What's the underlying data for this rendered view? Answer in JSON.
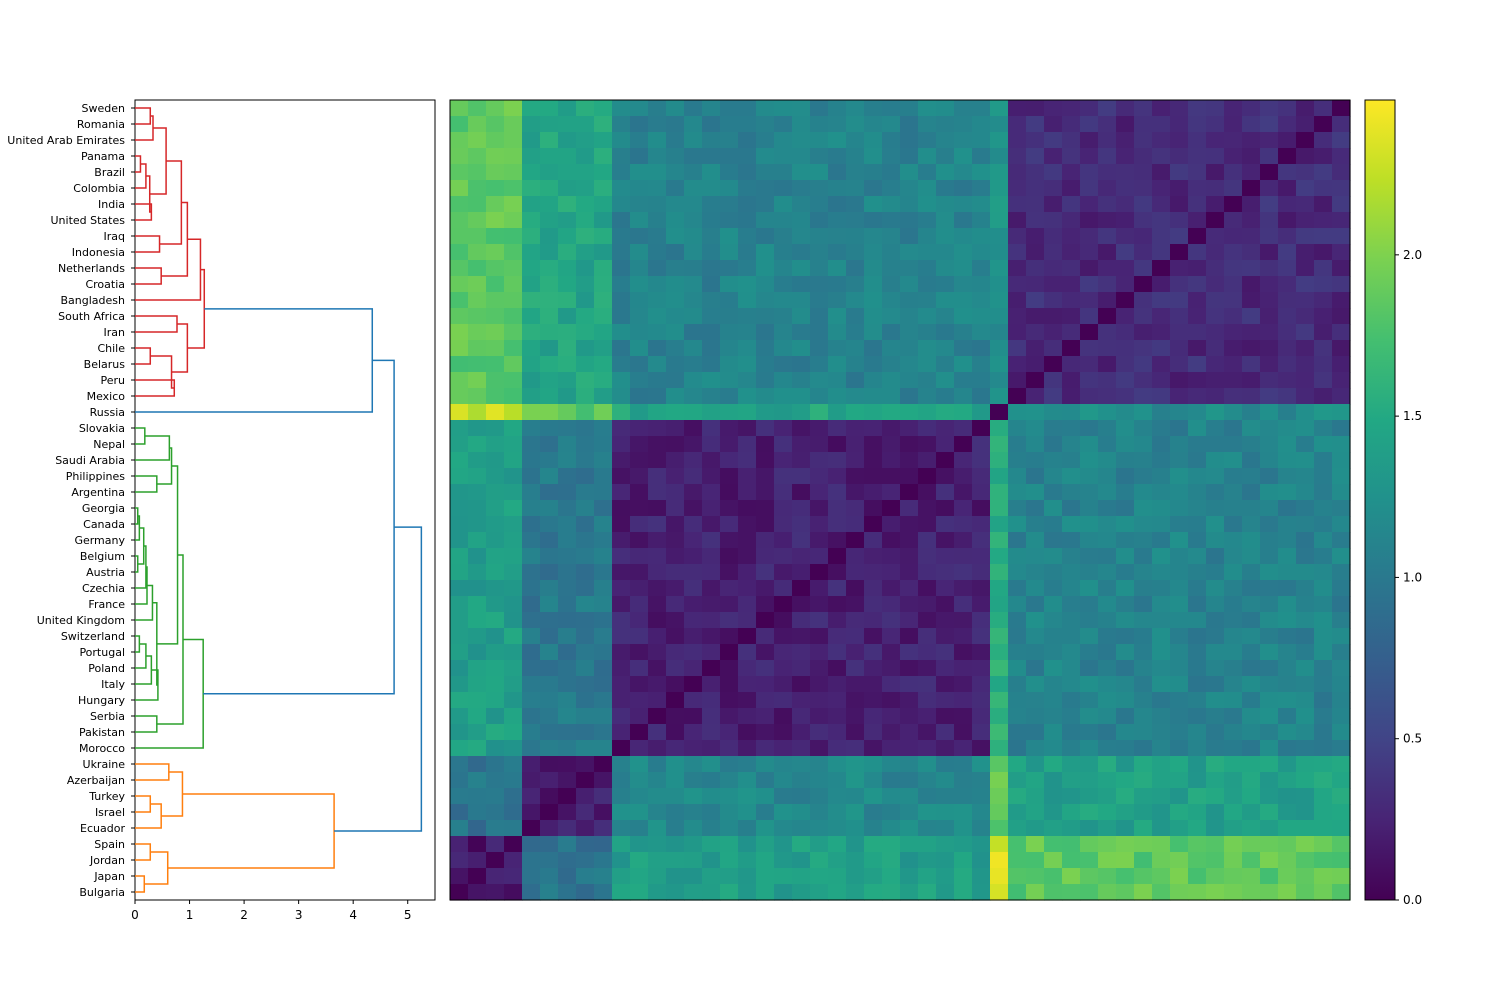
{
  "chart_data": [
    {
      "type": "dendrogram",
      "orientation": "left",
      "leaves": [
        "Sweden",
        "Romania",
        "United Arab Emirates",
        "Panama",
        "Brazil",
        "Colombia",
        "India",
        "United States",
        "Iraq",
        "Indonesia",
        "Netherlands",
        "Croatia",
        "Bangladesh",
        "South Africa",
        "Iran",
        "Chile",
        "Belarus",
        "Peru",
        "Mexico",
        "Russia",
        "Slovakia",
        "Nepal",
        "Saudi Arabia",
        "Philippines",
        "Argentina",
        "Georgia",
        "Canada",
        "Germany",
        "Belgium",
        "Austria",
        "Czechia",
        "France",
        "United Kingdom",
        "Switzerland",
        "Portugal",
        "Poland",
        "Italy",
        "Hungary",
        "Serbia",
        "Pakistan",
        "Morocco",
        "Ukraine",
        "Azerbaijan",
        "Turkey",
        "Israel",
        "Ecuador",
        "Spain",
        "Jordan",
        "Japan",
        "Bulgaria"
      ],
      "x_ticks": [
        "0",
        "1",
        "2",
        "3",
        "4",
        "5"
      ],
      "xlim": [
        0,
        5.5
      ],
      "cluster_colors": {
        "red": "#d62728",
        "green": "#2ca02c",
        "orange": "#ff7f0e",
        "blue": "#1f77b4"
      },
      "links": [
        {
          "a": "Sweden",
          "b": "Romania",
          "h": 0.28,
          "color": "red"
        },
        {
          "a": "Panama",
          "b": "Brazil",
          "h": 0.1,
          "color": "red"
        },
        {
          "a": "L:Panama|Brazil",
          "b": "Colombia",
          "h": 0.2,
          "color": "red"
        },
        {
          "a": "India",
          "b": "United States",
          "h": 0.3,
          "color": "red"
        },
        {
          "a": "L:Panama|Colombia",
          "b": "L:India|United States",
          "h": 0.27,
          "color": "red"
        },
        {
          "a": "L:Sweden|Romania",
          "b": "United Arab Emirates",
          "h": 0.33,
          "color": "red"
        },
        {
          "a": "L:Sweden|United Arab Emirates",
          "b": "L:Panama|United States",
          "h": 0.57,
          "color": "red"
        },
        {
          "a": "Iraq",
          "b": "Indonesia",
          "h": 0.45,
          "color": "red"
        },
        {
          "a": "L:Sweden|United States",
          "b": "L:Iraq|Indonesia",
          "h": 0.85,
          "color": "red"
        },
        {
          "a": "Netherlands",
          "b": "Croatia",
          "h": 0.48,
          "color": "red"
        },
        {
          "a": "L:Sweden|Indonesia",
          "b": "L:Netherlands|Croatia",
          "h": 0.96,
          "color": "red"
        },
        {
          "a": "L:Sweden|Croatia",
          "b": "Bangladesh",
          "h": 1.2,
          "color": "red"
        },
        {
          "a": "South Africa",
          "b": "Iran",
          "h": 0.77,
          "color": "red"
        },
        {
          "a": "Chile",
          "b": "Belarus",
          "h": 0.28,
          "color": "red"
        },
        {
          "a": "Peru",
          "b": "Mexico",
          "h": 0.72,
          "color": "red"
        },
        {
          "a": "L:Chile|Belarus",
          "b": "L:Peru|Mexico",
          "h": 0.67,
          "color": "red"
        },
        {
          "a": "L:South Africa|Iran",
          "b": "L:Chile|Mexico",
          "h": 0.96,
          "color": "red"
        },
        {
          "a": "L:Sweden|Bangladesh",
          "b": "L:South Africa|Mexico",
          "h": 1.27,
          "color": "red"
        },
        {
          "a": "L:Sweden|Mexico",
          "b": "Russia",
          "h": 4.35,
          "color": "blue"
        },
        {
          "a": "Slovakia",
          "b": "Nepal",
          "h": 0.18,
          "color": "green"
        },
        {
          "a": "L:Slovakia|Nepal",
          "b": "Saudi Arabia",
          "h": 0.63,
          "color": "green"
        },
        {
          "a": "Philippines",
          "b": "Argentina",
          "h": 0.4,
          "color": "green"
        },
        {
          "a": "L:Slovakia|Saudi Arabia",
          "b": "L:Philippines|Argentina",
          "h": 0.67,
          "color": "green"
        },
        {
          "a": "Georgia",
          "b": "Canada",
          "h": 0.05,
          "color": "green"
        },
        {
          "a": "L:Georgia|Canada",
          "b": "Germany",
          "h": 0.08,
          "color": "green"
        },
        {
          "a": "Belgium",
          "b": "Austria",
          "h": 0.05,
          "color": "green"
        },
        {
          "a": "L:Georgia|Germany",
          "b": "L:Belgium|Austria",
          "h": 0.16,
          "color": "green"
        },
        {
          "a": "L:Georgia|Austria",
          "b": "Czechia",
          "h": 0.2,
          "color": "green"
        },
        {
          "a": "L:Georgia|Czechia",
          "b": "France",
          "h": 0.22,
          "color": "green"
        },
        {
          "a": "L:Georgia|France",
          "b": "United Kingdom",
          "h": 0.32,
          "color": "green"
        },
        {
          "a": "Switzerland",
          "b": "Portugal",
          "h": 0.08,
          "color": "green"
        },
        {
          "a": "L:Switzerland|Portugal",
          "b": "Poland",
          "h": 0.2,
          "color": "green"
        },
        {
          "a": "L:Switzerland|Poland",
          "b": "Italy",
          "h": 0.3,
          "color": "green"
        },
        {
          "a": "L:Switzerland|Italy",
          "b": "Hungary",
          "h": 0.42,
          "color": "green"
        },
        {
          "a": "L:Georgia|United Kingdom",
          "b": "L:Switzerland|Hungary",
          "h": 0.4,
          "color": "green"
        },
        {
          "a": "L:Slovakia|Argentina",
          "b": "L:Georgia|Hungary",
          "h": 0.78,
          "color": "green"
        },
        {
          "a": "Serbia",
          "b": "Pakistan",
          "h": 0.4,
          "color": "green"
        },
        {
          "a": "L:Slovakia|Hungary",
          "b": "L:Serbia|Pakistan",
          "h": 0.88,
          "color": "green"
        },
        {
          "a": "L:Slovakia|Pakistan",
          "b": "Morocco",
          "h": 1.25,
          "color": "green"
        },
        {
          "a": "L:Sweden|Russia",
          "b": "L:Slovakia|Morocco",
          "h": 4.75,
          "color": "blue"
        },
        {
          "a": "Ukraine",
          "b": "Azerbaijan",
          "h": 0.62,
          "color": "orange"
        },
        {
          "a": "Turkey",
          "b": "Israel",
          "h": 0.28,
          "color": "orange"
        },
        {
          "a": "L:Turkey|Israel",
          "b": "Ecuador",
          "h": 0.48,
          "color": "orange"
        },
        {
          "a": "L:Ukraine|Azerbaijan",
          "b": "L:Turkey|Ecuador",
          "h": 0.87,
          "color": "orange"
        },
        {
          "a": "Spain",
          "b": "Jordan",
          "h": 0.28,
          "color": "orange"
        },
        {
          "a": "Japan",
          "b": "Bulgaria",
          "h": 0.17,
          "color": "orange"
        },
        {
          "a": "L:Spain|Jordan",
          "b": "L:Japan|Bulgaria",
          "h": 0.6,
          "color": "orange"
        },
        {
          "a": "L:Ukraine|Ecuador",
          "b": "L:Spain|Bulgaria",
          "h": 3.65,
          "color": "orange"
        },
        {
          "a": "L:Sweden|Morocco",
          "b": "L:Ukraine|Bulgaria",
          "h": 5.25,
          "color": "blue"
        }
      ]
    },
    {
      "type": "heatmap",
      "rows": 50,
      "cols": 50,
      "blocks": [
        {
          "name": "A",
          "start": 0,
          "end": 4
        },
        {
          "name": "B",
          "start": 4,
          "end": 9
        },
        {
          "name": "C",
          "start": 9,
          "end": 30
        },
        {
          "name": "D",
          "start": 30,
          "end": 31
        },
        {
          "name": "E",
          "start": 31,
          "end": 50
        }
      ],
      "row_blocks": [
        {
          "name": "E",
          "start": 0,
          "end": 19
        },
        {
          "name": "D",
          "start": 19,
          "end": 20
        },
        {
          "name": "C",
          "start": 20,
          "end": 41
        },
        {
          "name": "B",
          "start": 41,
          "end": 46
        },
        {
          "name": "A",
          "start": 46,
          "end": 50
        }
      ],
      "block_values": {
        "E": {
          "A": 1.85,
          "B": 1.45,
          "C": 1.1,
          "D": 1.25,
          "E": 0.3
        },
        "D": {
          "A": 2.3,
          "B": 1.85,
          "C": 1.45,
          "D": 0.0,
          "E": 1.2
        },
        "C": {
          "A": 1.38,
          "B": 1.0,
          "C": 0.22,
          "D": 1.55,
          "E": 1.1
        },
        "B": {
          "A": 0.95,
          "B": 0.2,
          "C": 1.15,
          "D": 1.85,
          "E": 1.4
        },
        "A": {
          "A": 0.15,
          "B": 0.95,
          "C": 1.38,
          "D": 2.3,
          "E": 1.85
        }
      },
      "vmin": 0.0,
      "vmax": 2.48,
      "colormap": "viridis",
      "colorbar_ticks": [
        "0.0",
        "0.5",
        "1.0",
        "1.5",
        "2.0"
      ],
      "colorbar_tick_values": [
        0.0,
        0.5,
        1.0,
        1.5,
        2.0
      ]
    }
  ]
}
